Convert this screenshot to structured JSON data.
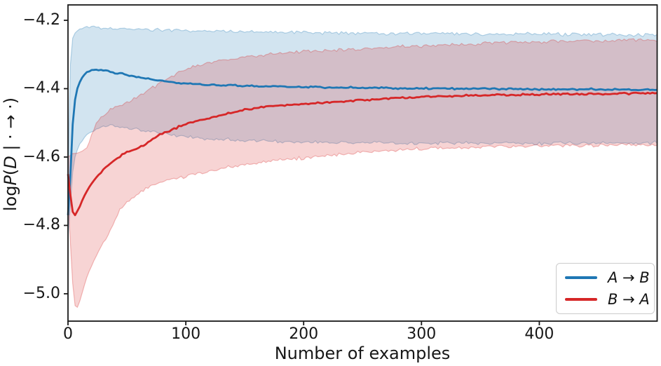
{
  "chart_data": {
    "type": "line",
    "title": "",
    "xlabel": "Number of examples",
    "ylabel": "logP(D | · → ·)",
    "ylabel_parts": [
      {
        "t": "log",
        "italic": false
      },
      {
        "t": "P",
        "italic": true
      },
      {
        "t": "(",
        "italic": false
      },
      {
        "t": "D",
        "italic": true
      },
      {
        "t": " | · → ·)",
        "italic": false
      }
    ],
    "xlim": [
      0,
      500
    ],
    "ylim": [
      -5.08,
      -4.155
    ],
    "xticks": [
      0,
      100,
      200,
      300,
      400
    ],
    "yticks": [
      -4.2,
      -4.4,
      -4.6,
      -4.8,
      -5.0
    ],
    "grid": false,
    "legend_position": "lower right",
    "series": [
      {
        "name": "A → B",
        "color": "#1f77b4",
        "fill_opacity": 0.2,
        "points_format": [
          "x",
          "y",
          "band_low",
          "band_high"
        ],
        "points": [
          [
            0,
            -4.77,
            -4.84,
            -4.66
          ],
          [
            1,
            -4.72,
            -4.8,
            -4.5
          ],
          [
            2,
            -4.655,
            -4.74,
            -4.33
          ],
          [
            3,
            -4.575,
            -4.68,
            -4.275
          ],
          [
            4,
            -4.505,
            -4.645,
            -4.252
          ],
          [
            5,
            -4.463,
            -4.618,
            -4.243
          ],
          [
            6,
            -4.432,
            -4.6,
            -4.237
          ],
          [
            8,
            -4.4,
            -4.578,
            -4.23
          ],
          [
            10,
            -4.381,
            -4.562,
            -4.226
          ],
          [
            13,
            -4.362,
            -4.549,
            -4.223
          ],
          [
            16,
            -4.352,
            -4.537,
            -4.221
          ],
          [
            20,
            -4.346,
            -4.525,
            -4.22
          ],
          [
            24,
            -4.344,
            -4.516,
            -4.22
          ],
          [
            28,
            -4.345,
            -4.51,
            -4.221
          ],
          [
            33,
            -4.349,
            -4.507,
            -4.222
          ],
          [
            38,
            -4.352,
            -4.508,
            -4.223
          ],
          [
            44,
            -4.356,
            -4.511,
            -4.224
          ],
          [
            50,
            -4.36,
            -4.514,
            -4.225
          ],
          [
            58,
            -4.365,
            -4.519,
            -4.226
          ],
          [
            66,
            -4.37,
            -4.524,
            -4.227
          ],
          [
            75,
            -4.375,
            -4.529,
            -4.228
          ],
          [
            85,
            -4.38,
            -4.534,
            -4.229
          ],
          [
            95,
            -4.383,
            -4.539,
            -4.23
          ],
          [
            106,
            -4.386,
            -4.543,
            -4.231
          ],
          [
            118,
            -4.388,
            -4.546,
            -4.232
          ],
          [
            130,
            -4.39,
            -4.549,
            -4.233
          ],
          [
            145,
            -4.392,
            -4.551,
            -4.233
          ],
          [
            160,
            -4.393,
            -4.553,
            -4.234
          ],
          [
            175,
            -4.394,
            -4.554,
            -4.235
          ],
          [
            190,
            -4.395,
            -4.555,
            -4.235
          ],
          [
            210,
            -4.396,
            -4.556,
            -4.236
          ],
          [
            230,
            -4.397,
            -4.557,
            -4.237
          ],
          [
            250,
            -4.397,
            -4.558,
            -4.237
          ],
          [
            270,
            -4.398,
            -4.558,
            -4.238
          ],
          [
            290,
            -4.399,
            -4.559,
            -4.238
          ],
          [
            310,
            -4.399,
            -4.559,
            -4.239
          ],
          [
            330,
            -4.4,
            -4.559,
            -4.239
          ],
          [
            350,
            -4.4,
            -4.559,
            -4.24
          ],
          [
            370,
            -4.401,
            -4.56,
            -4.24
          ],
          [
            390,
            -4.401,
            -4.56,
            -4.24
          ],
          [
            410,
            -4.402,
            -4.56,
            -4.241
          ],
          [
            430,
            -4.402,
            -4.559,
            -4.241
          ],
          [
            450,
            -4.402,
            -4.559,
            -4.241
          ],
          [
            470,
            -4.403,
            -4.559,
            -4.241
          ],
          [
            485,
            -4.403,
            -4.559,
            -4.242
          ],
          [
            500,
            -4.402,
            -4.558,
            -4.242
          ]
        ]
      },
      {
        "name": "B → A",
        "color": "#d62728",
        "fill_opacity": 0.2,
        "points_format": [
          "x",
          "y",
          "band_low",
          "band_high"
        ],
        "points": [
          [
            0,
            -4.65,
            -4.72,
            -4.6
          ],
          [
            2,
            -4.71,
            -4.85,
            -4.595
          ],
          [
            4,
            -4.76,
            -4.97,
            -4.59
          ],
          [
            5,
            -4.772,
            -5.01,
            -4.59
          ],
          [
            6,
            -4.77,
            -5.035,
            -4.59
          ],
          [
            8,
            -4.757,
            -5.04,
            -4.588
          ],
          [
            10,
            -4.744,
            -5.02,
            -4.585
          ],
          [
            13,
            -4.72,
            -4.985,
            -4.58
          ],
          [
            16,
            -4.7,
            -4.95,
            -4.572
          ],
          [
            20,
            -4.678,
            -4.917,
            -4.535
          ],
          [
            24,
            -4.66,
            -4.888,
            -4.505
          ],
          [
            28,
            -4.645,
            -4.862,
            -4.485
          ],
          [
            33,
            -4.627,
            -4.833,
            -4.469
          ],
          [
            38,
            -4.612,
            -4.8,
            -4.458
          ],
          [
            44,
            -4.598,
            -4.755,
            -4.448
          ],
          [
            50,
            -4.586,
            -4.735,
            -4.439
          ],
          [
            58,
            -4.576,
            -4.712,
            -4.425
          ],
          [
            66,
            -4.562,
            -4.695,
            -4.409
          ],
          [
            75,
            -4.54,
            -4.678,
            -4.39
          ],
          [
            85,
            -4.525,
            -4.668,
            -4.37
          ],
          [
            95,
            -4.51,
            -4.66,
            -4.349
          ],
          [
            106,
            -4.497,
            -4.651,
            -4.336
          ],
          [
            118,
            -4.488,
            -4.642,
            -4.326
          ],
          [
            130,
            -4.477,
            -4.634,
            -4.318
          ],
          [
            145,
            -4.465,
            -4.626,
            -4.311
          ],
          [
            160,
            -4.456,
            -4.618,
            -4.304
          ],
          [
            175,
            -4.45,
            -4.612,
            -4.299
          ],
          [
            190,
            -4.447,
            -4.606,
            -4.295
          ],
          [
            210,
            -4.443,
            -4.6,
            -4.29
          ],
          [
            230,
            -4.438,
            -4.593,
            -4.286
          ],
          [
            250,
            -4.434,
            -4.587,
            -4.283
          ],
          [
            270,
            -4.429,
            -4.581,
            -4.279
          ],
          [
            290,
            -4.425,
            -4.577,
            -4.276
          ],
          [
            310,
            -4.422,
            -4.574,
            -4.273
          ],
          [
            330,
            -4.421,
            -4.572,
            -4.271
          ],
          [
            350,
            -4.419,
            -4.57,
            -4.268
          ],
          [
            370,
            -4.418,
            -4.569,
            -4.266
          ],
          [
            390,
            -4.417,
            -4.568,
            -4.264
          ],
          [
            410,
            -4.416,
            -4.567,
            -4.262
          ],
          [
            430,
            -4.416,
            -4.566,
            -4.261
          ],
          [
            450,
            -4.415,
            -4.566,
            -4.26
          ],
          [
            470,
            -4.414,
            -4.565,
            -4.259
          ],
          [
            485,
            -4.414,
            -4.565,
            -4.258
          ],
          [
            500,
            -4.413,
            -4.564,
            -4.258
          ]
        ]
      }
    ],
    "axis_color": "#1a1a1a"
  }
}
